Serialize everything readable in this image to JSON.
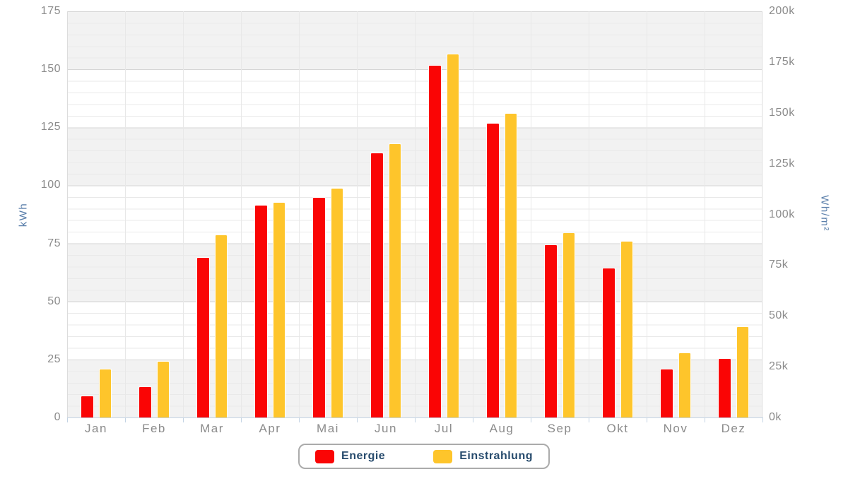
{
  "chart_data": {
    "type": "bar",
    "title": "",
    "categories": [
      "Jan",
      "Feb",
      "Mar",
      "Apr",
      "Mai",
      "Jun",
      "Jul",
      "Aug",
      "Sep",
      "Okt",
      "Nov",
      "Dez"
    ],
    "series": [
      {
        "name": "Energie",
        "axis": "left",
        "unit": "kWh",
        "color": "#fa0505",
        "values": [
          9.5,
          13.5,
          69,
          91.5,
          95,
          114,
          152,
          127,
          74.5,
          64.5,
          21,
          25.5
        ]
      },
      {
        "name": "Einstrahlung",
        "axis": "right",
        "unit": "Wh/m²",
        "color": "#fec52b",
        "values": [
          24000,
          28000,
          90000,
          106000,
          113000,
          135000,
          179000,
          150000,
          91000,
          87000,
          32000,
          45000
        ]
      }
    ],
    "left_axis": {
      "title": "kWh",
      "min": 0,
      "max": 175,
      "tick_step": 25,
      "tick_labels": [
        "175",
        "150",
        "125",
        "100",
        "75",
        "50",
        "25",
        "0"
      ]
    },
    "right_axis": {
      "title": "Wh/m²",
      "min": 0,
      "max": 200000,
      "tick_step": 25000,
      "tick_labels": [
        "200k",
        "175k",
        "150k",
        "125k",
        "100k",
        "75k",
        "50k",
        "25k",
        "0k"
      ]
    },
    "legend": {
      "position": "bottom",
      "entries": [
        "Energie",
        "Einstrahlung"
      ]
    },
    "grid": "on",
    "minor_grid": "on"
  },
  "colors": {
    "energie": "#fa0505",
    "einstrahlung": "#fec52b",
    "tick_label": "#8b8b8b",
    "axis_title": "#5c80ab",
    "legend_text": "#274b6d",
    "x_axis_line": "#c3d3e3",
    "band_gray": "#f2f2f2",
    "grid_major": "#d6d6d6",
    "grid_minor": "#e9e9e9"
  }
}
